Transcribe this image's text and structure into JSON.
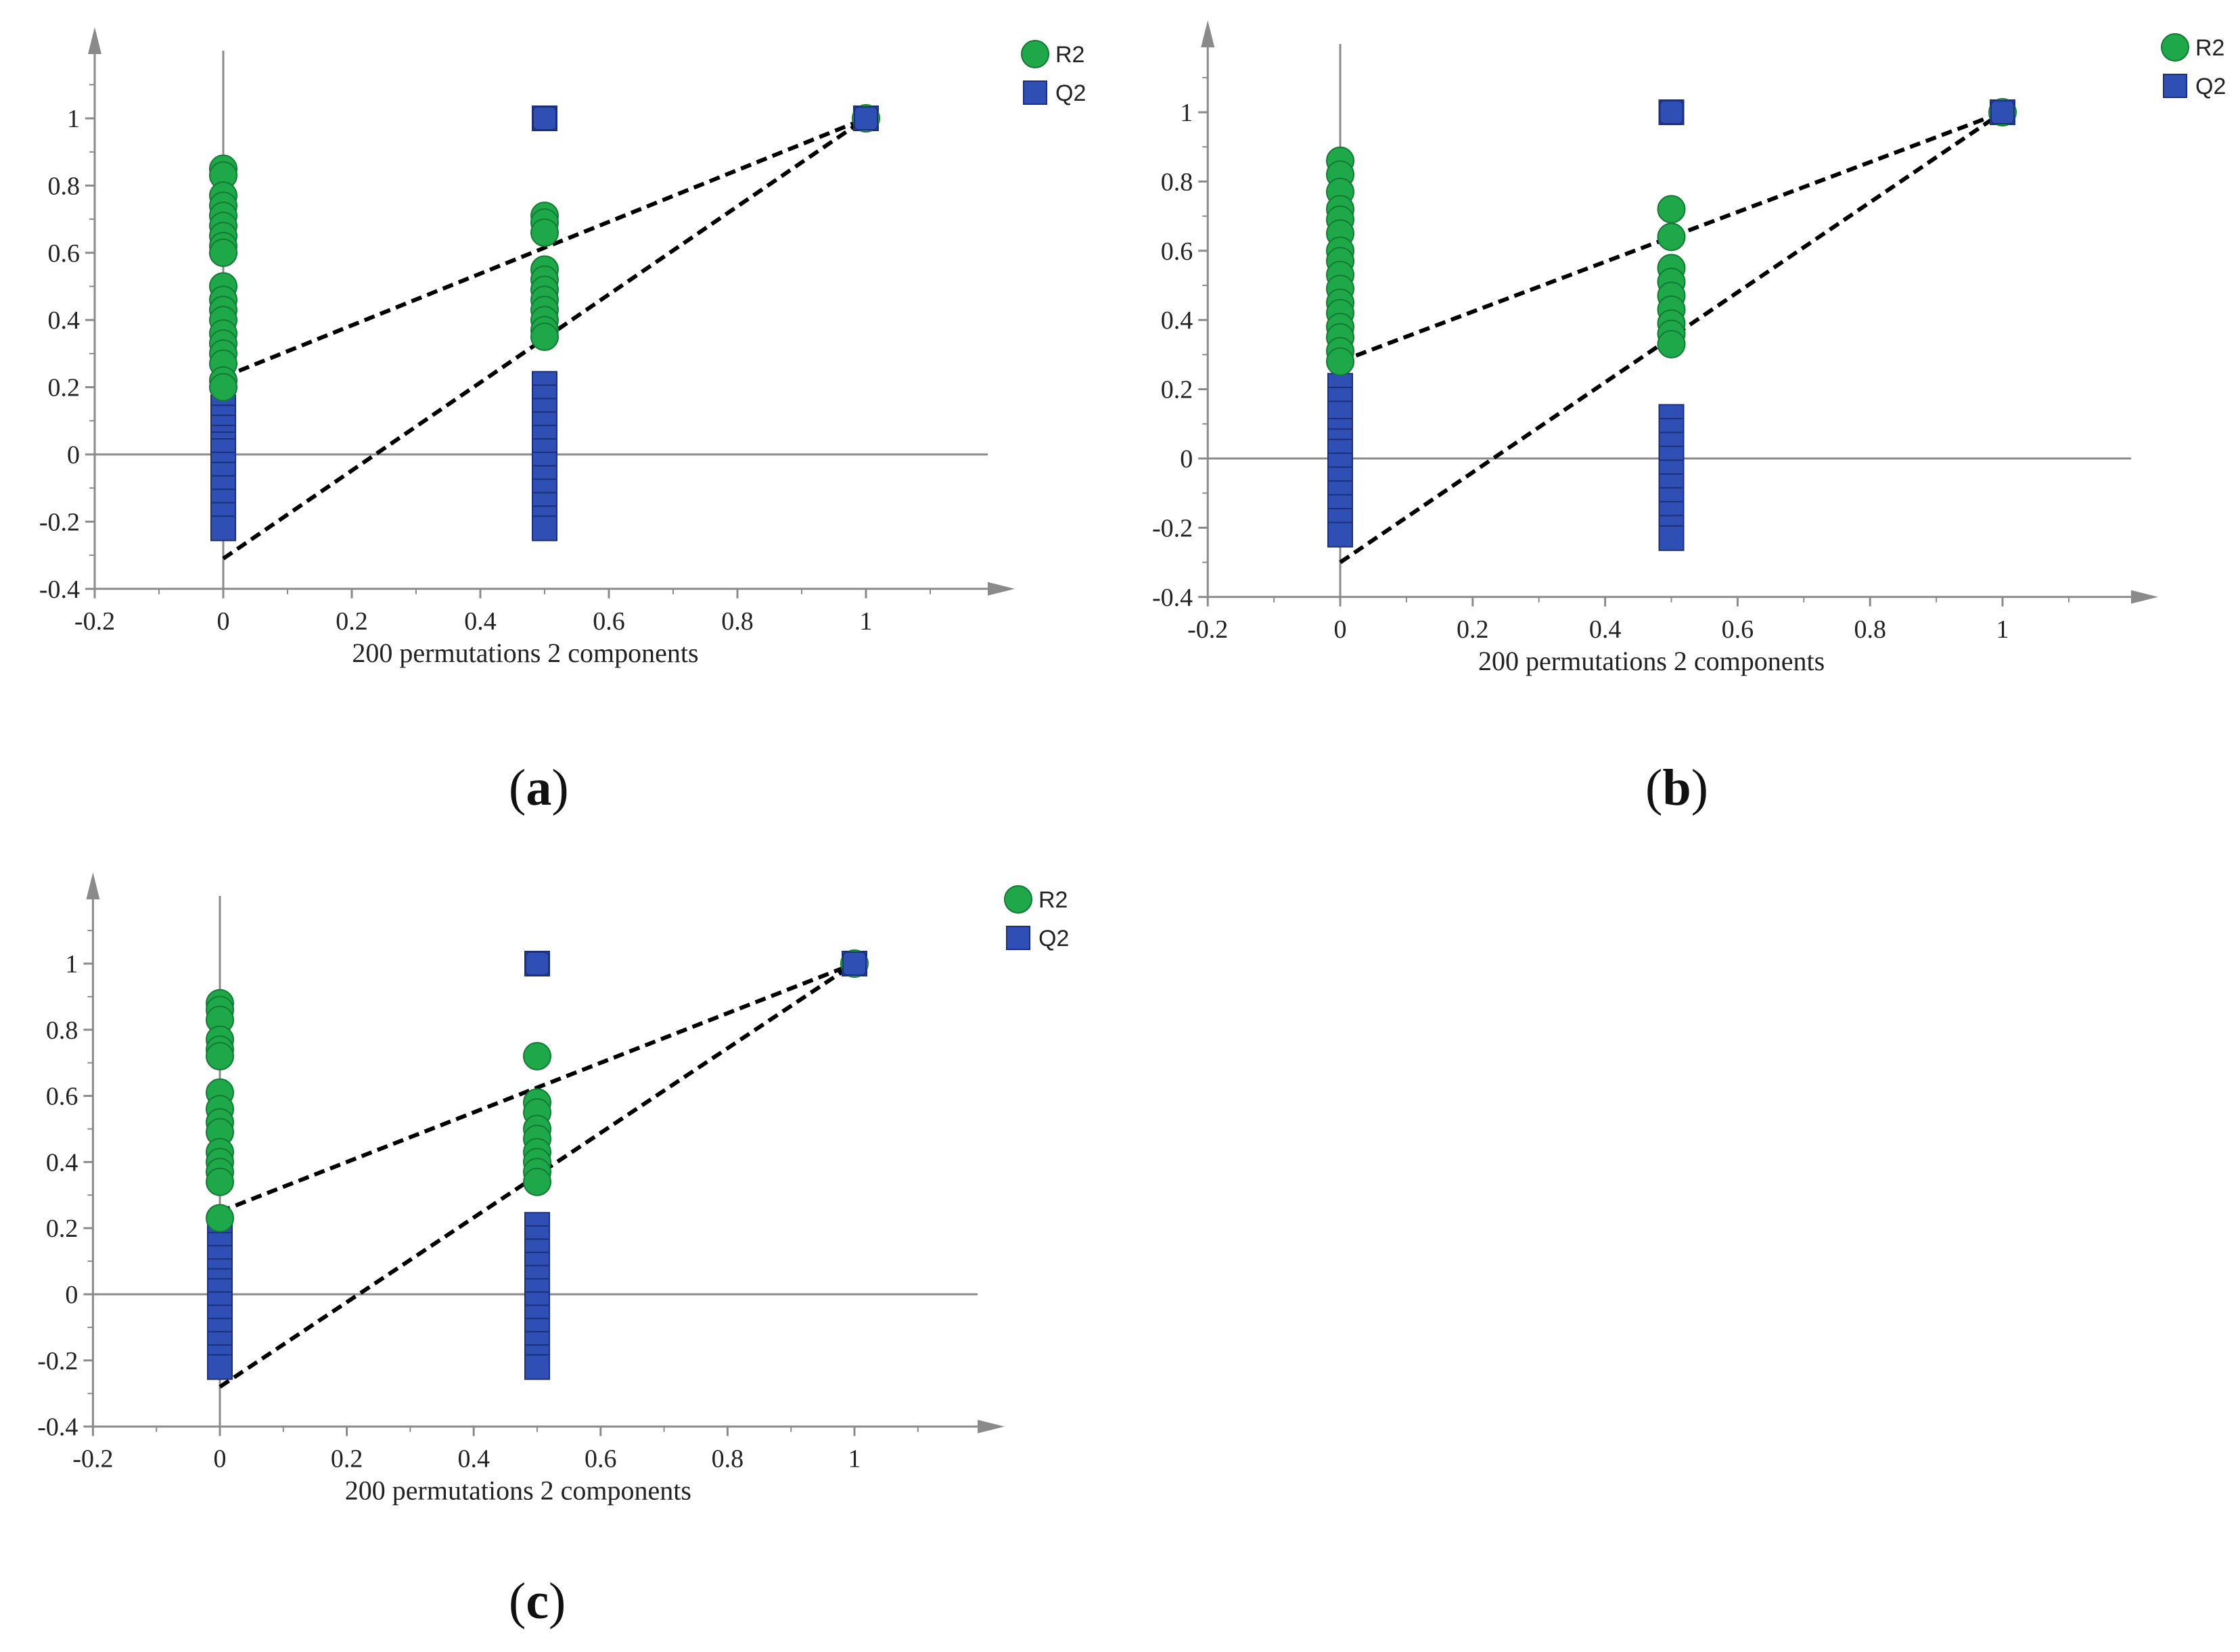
{
  "chart_data": [
    {
      "type": "scatter",
      "panel": "a",
      "xlabel": "200 permutations 2 components",
      "ylabel": "",
      "xlim": [
        -0.2,
        1.2
      ],
      "ylim": [
        -0.4,
        1.15
      ],
      "xticks": [
        "-0.2",
        "0",
        "0.2",
        "0.4",
        "0.6",
        "0.8",
        "1"
      ],
      "yticks": [
        "-0.4",
        "-0.2",
        "0",
        "0.2",
        "0.4",
        "0.6",
        "0.8",
        "1"
      ],
      "legend": [
        "R2",
        "Q2"
      ],
      "series": [
        {
          "name": "R2",
          "marker": "circle",
          "color": "#1fa84a",
          "points": [
            [
              0,
              0.85
            ],
            [
              0,
              0.83
            ],
            [
              0,
              0.77
            ],
            [
              0,
              0.74
            ],
            [
              0,
              0.71
            ],
            [
              0,
              0.68
            ],
            [
              0,
              0.65
            ],
            [
              0,
              0.62
            ],
            [
              0,
              0.6
            ],
            [
              0,
              0.5
            ],
            [
              0,
              0.46
            ],
            [
              0,
              0.43
            ],
            [
              0,
              0.4
            ],
            [
              0,
              0.36
            ],
            [
              0,
              0.33
            ],
            [
              0,
              0.3
            ],
            [
              0,
              0.27
            ],
            [
              0,
              0.22
            ],
            [
              0,
              0.2
            ],
            [
              0.5,
              0.71
            ],
            [
              0.5,
              0.69
            ],
            [
              0.5,
              0.66
            ],
            [
              0.5,
              0.55
            ],
            [
              0.5,
              0.52
            ],
            [
              0.5,
              0.49
            ],
            [
              0.5,
              0.46
            ],
            [
              0.5,
              0.43
            ],
            [
              0.5,
              0.4
            ],
            [
              0.5,
              0.37
            ],
            [
              0.5,
              0.35
            ],
            [
              1,
              1.0
            ]
          ]
        },
        {
          "name": "Q2",
          "marker": "square",
          "color": "#2f4fb5",
          "points": [
            [
              0,
              0.14
            ],
            [
              0,
              0.11
            ],
            [
              0,
              0.08
            ],
            [
              0,
              0.05
            ],
            [
              0,
              0.03
            ],
            [
              0,
              0.01
            ],
            [
              0,
              -0.03
            ],
            [
              0,
              -0.06
            ],
            [
              0,
              -0.1
            ],
            [
              0,
              -0.14
            ],
            [
              0,
              -0.18
            ],
            [
              0,
              -0.22
            ],
            [
              0.5,
              1.0
            ],
            [
              0.5,
              0.21
            ],
            [
              0.5,
              0.17
            ],
            [
              0.5,
              0.13
            ],
            [
              0.5,
              0.09
            ],
            [
              0.5,
              0.05
            ],
            [
              0.5,
              0.01
            ],
            [
              0.5,
              -0.03
            ],
            [
              0.5,
              -0.07
            ],
            [
              0.5,
              -0.11
            ],
            [
              0.5,
              -0.15
            ],
            [
              0.5,
              -0.19
            ],
            [
              0.5,
              -0.22
            ],
            [
              1,
              1.0
            ]
          ]
        }
      ],
      "regression_lines": [
        {
          "name": "R2",
          "from": [
            0,
            0.23
          ],
          "to": [
            1,
            1.0
          ]
        },
        {
          "name": "Q2",
          "from": [
            0,
            -0.31
          ],
          "to": [
            1,
            1.0
          ]
        }
      ]
    },
    {
      "type": "scatter",
      "panel": "b",
      "xlabel": "200 permutations 2 components",
      "ylabel": "",
      "xlim": [
        -0.2,
        1.2
      ],
      "ylim": [
        -0.4,
        1.15
      ],
      "xticks": [
        "-0.2",
        "0",
        "0.2",
        "0.4",
        "0.6",
        "0.8",
        "1"
      ],
      "yticks": [
        "-0.4",
        "-0.2",
        "0",
        "0.2",
        "0.4",
        "0.6",
        "0.8",
        "1"
      ],
      "legend": [
        "R2",
        "Q2"
      ],
      "series": [
        {
          "name": "R2",
          "marker": "circle",
          "color": "#1fa84a",
          "points": [
            [
              0,
              0.86
            ],
            [
              0,
              0.82
            ],
            [
              0,
              0.77
            ],
            [
              0,
              0.72
            ],
            [
              0,
              0.69
            ],
            [
              0,
              0.65
            ],
            [
              0,
              0.6
            ],
            [
              0,
              0.57
            ],
            [
              0,
              0.53
            ],
            [
              0,
              0.49
            ],
            [
              0,
              0.45
            ],
            [
              0,
              0.42
            ],
            [
              0,
              0.38
            ],
            [
              0,
              0.35
            ],
            [
              0,
              0.31
            ],
            [
              0,
              0.28
            ],
            [
              0.5,
              0.72
            ],
            [
              0.5,
              0.64
            ],
            [
              0.5,
              0.55
            ],
            [
              0.5,
              0.51
            ],
            [
              0.5,
              0.47
            ],
            [
              0.5,
              0.43
            ],
            [
              0.5,
              0.39
            ],
            [
              0.5,
              0.36
            ],
            [
              0.5,
              0.33
            ],
            [
              1,
              1.0
            ]
          ]
        },
        {
          "name": "Q2",
          "marker": "square",
          "color": "#2f4fb5",
          "points": [
            [
              0,
              0.21
            ],
            [
              0,
              0.17
            ],
            [
              0,
              0.13
            ],
            [
              0,
              0.08
            ],
            [
              0,
              0.05
            ],
            [
              0,
              0.02
            ],
            [
              0,
              -0.02
            ],
            [
              0,
              -0.06
            ],
            [
              0,
              -0.1
            ],
            [
              0,
              -0.14
            ],
            [
              0,
              -0.18
            ],
            [
              0,
              -0.22
            ],
            [
              0.5,
              1.0
            ],
            [
              0.5,
              0.12
            ],
            [
              0.5,
              0.08
            ],
            [
              0.5,
              0.04
            ],
            [
              0.5,
              0.0
            ],
            [
              0.5,
              -0.04
            ],
            [
              0.5,
              -0.08
            ],
            [
              0.5,
              -0.12
            ],
            [
              0.5,
              -0.16
            ],
            [
              0.5,
              -0.2
            ],
            [
              0.5,
              -0.23
            ],
            [
              1,
              1.0
            ]
          ]
        }
      ],
      "regression_lines": [
        {
          "name": "R2",
          "from": [
            0,
            0.28
          ],
          "to": [
            1,
            1.0
          ]
        },
        {
          "name": "Q2",
          "from": [
            0,
            -0.3
          ],
          "to": [
            1,
            1.0
          ]
        }
      ]
    },
    {
      "type": "scatter",
      "panel": "c",
      "xlabel": "200 permutations 2 components",
      "ylabel": "",
      "xlim": [
        -0.2,
        1.2
      ],
      "ylim": [
        -0.4,
        1.15
      ],
      "xticks": [
        "-0.2",
        "0",
        "0.2",
        "0.4",
        "0.6",
        "0.8",
        "1"
      ],
      "yticks": [
        "-0.4",
        "-0.2",
        "0",
        "0.2",
        "0.4",
        "0.6",
        "0.8",
        "1"
      ],
      "legend": [
        "R2",
        "Q2"
      ],
      "series": [
        {
          "name": "R2",
          "marker": "circle",
          "color": "#1fa84a",
          "points": [
            [
              0,
              0.88
            ],
            [
              0,
              0.86
            ],
            [
              0,
              0.83
            ],
            [
              0,
              0.77
            ],
            [
              0,
              0.74
            ],
            [
              0,
              0.72
            ],
            [
              0,
              0.61
            ],
            [
              0,
              0.56
            ],
            [
              0,
              0.52
            ],
            [
              0,
              0.49
            ],
            [
              0,
              0.43
            ],
            [
              0,
              0.4
            ],
            [
              0,
              0.37
            ],
            [
              0,
              0.34
            ],
            [
              0,
              0.23
            ],
            [
              0.5,
              0.72
            ],
            [
              0.5,
              0.58
            ],
            [
              0.5,
              0.55
            ],
            [
              0.5,
              0.5
            ],
            [
              0.5,
              0.47
            ],
            [
              0.5,
              0.43
            ],
            [
              0.5,
              0.4
            ],
            [
              0.5,
              0.37
            ],
            [
              0.5,
              0.34
            ],
            [
              1,
              1.0
            ]
          ]
        },
        {
          "name": "Q2",
          "marker": "square",
          "color": "#2f4fb5",
          "points": [
            [
              0,
              0.19
            ],
            [
              0,
              0.15
            ],
            [
              0,
              0.11
            ],
            [
              0,
              0.07
            ],
            [
              0,
              0.04
            ],
            [
              0,
              0.01
            ],
            [
              0,
              -0.03
            ],
            [
              0,
              -0.07
            ],
            [
              0,
              -0.11
            ],
            [
              0,
              -0.15
            ],
            [
              0,
              -0.19
            ],
            [
              0,
              -0.22
            ],
            [
              0.5,
              1.0
            ],
            [
              0.5,
              0.21
            ],
            [
              0.5,
              0.17
            ],
            [
              0.5,
              0.13
            ],
            [
              0.5,
              0.09
            ],
            [
              0.5,
              0.05
            ],
            [
              0.5,
              0.01
            ],
            [
              0.5,
              -0.03
            ],
            [
              0.5,
              -0.07
            ],
            [
              0.5,
              -0.11
            ],
            [
              0.5,
              -0.15
            ],
            [
              0.5,
              -0.19
            ],
            [
              0.5,
              -0.22
            ],
            [
              1,
              1.0
            ]
          ]
        }
      ],
      "regression_lines": [
        {
          "name": "R2",
          "from": [
            0,
            0.25
          ],
          "to": [
            1,
            1.0
          ]
        },
        {
          "name": "Q2",
          "from": [
            0,
            -0.28
          ],
          "to": [
            1,
            1.0
          ]
        }
      ]
    }
  ],
  "labels": {
    "a": "a",
    "b": "b",
    "c": "c"
  },
  "label_punct": {
    "open": "(",
    "close": ")"
  }
}
